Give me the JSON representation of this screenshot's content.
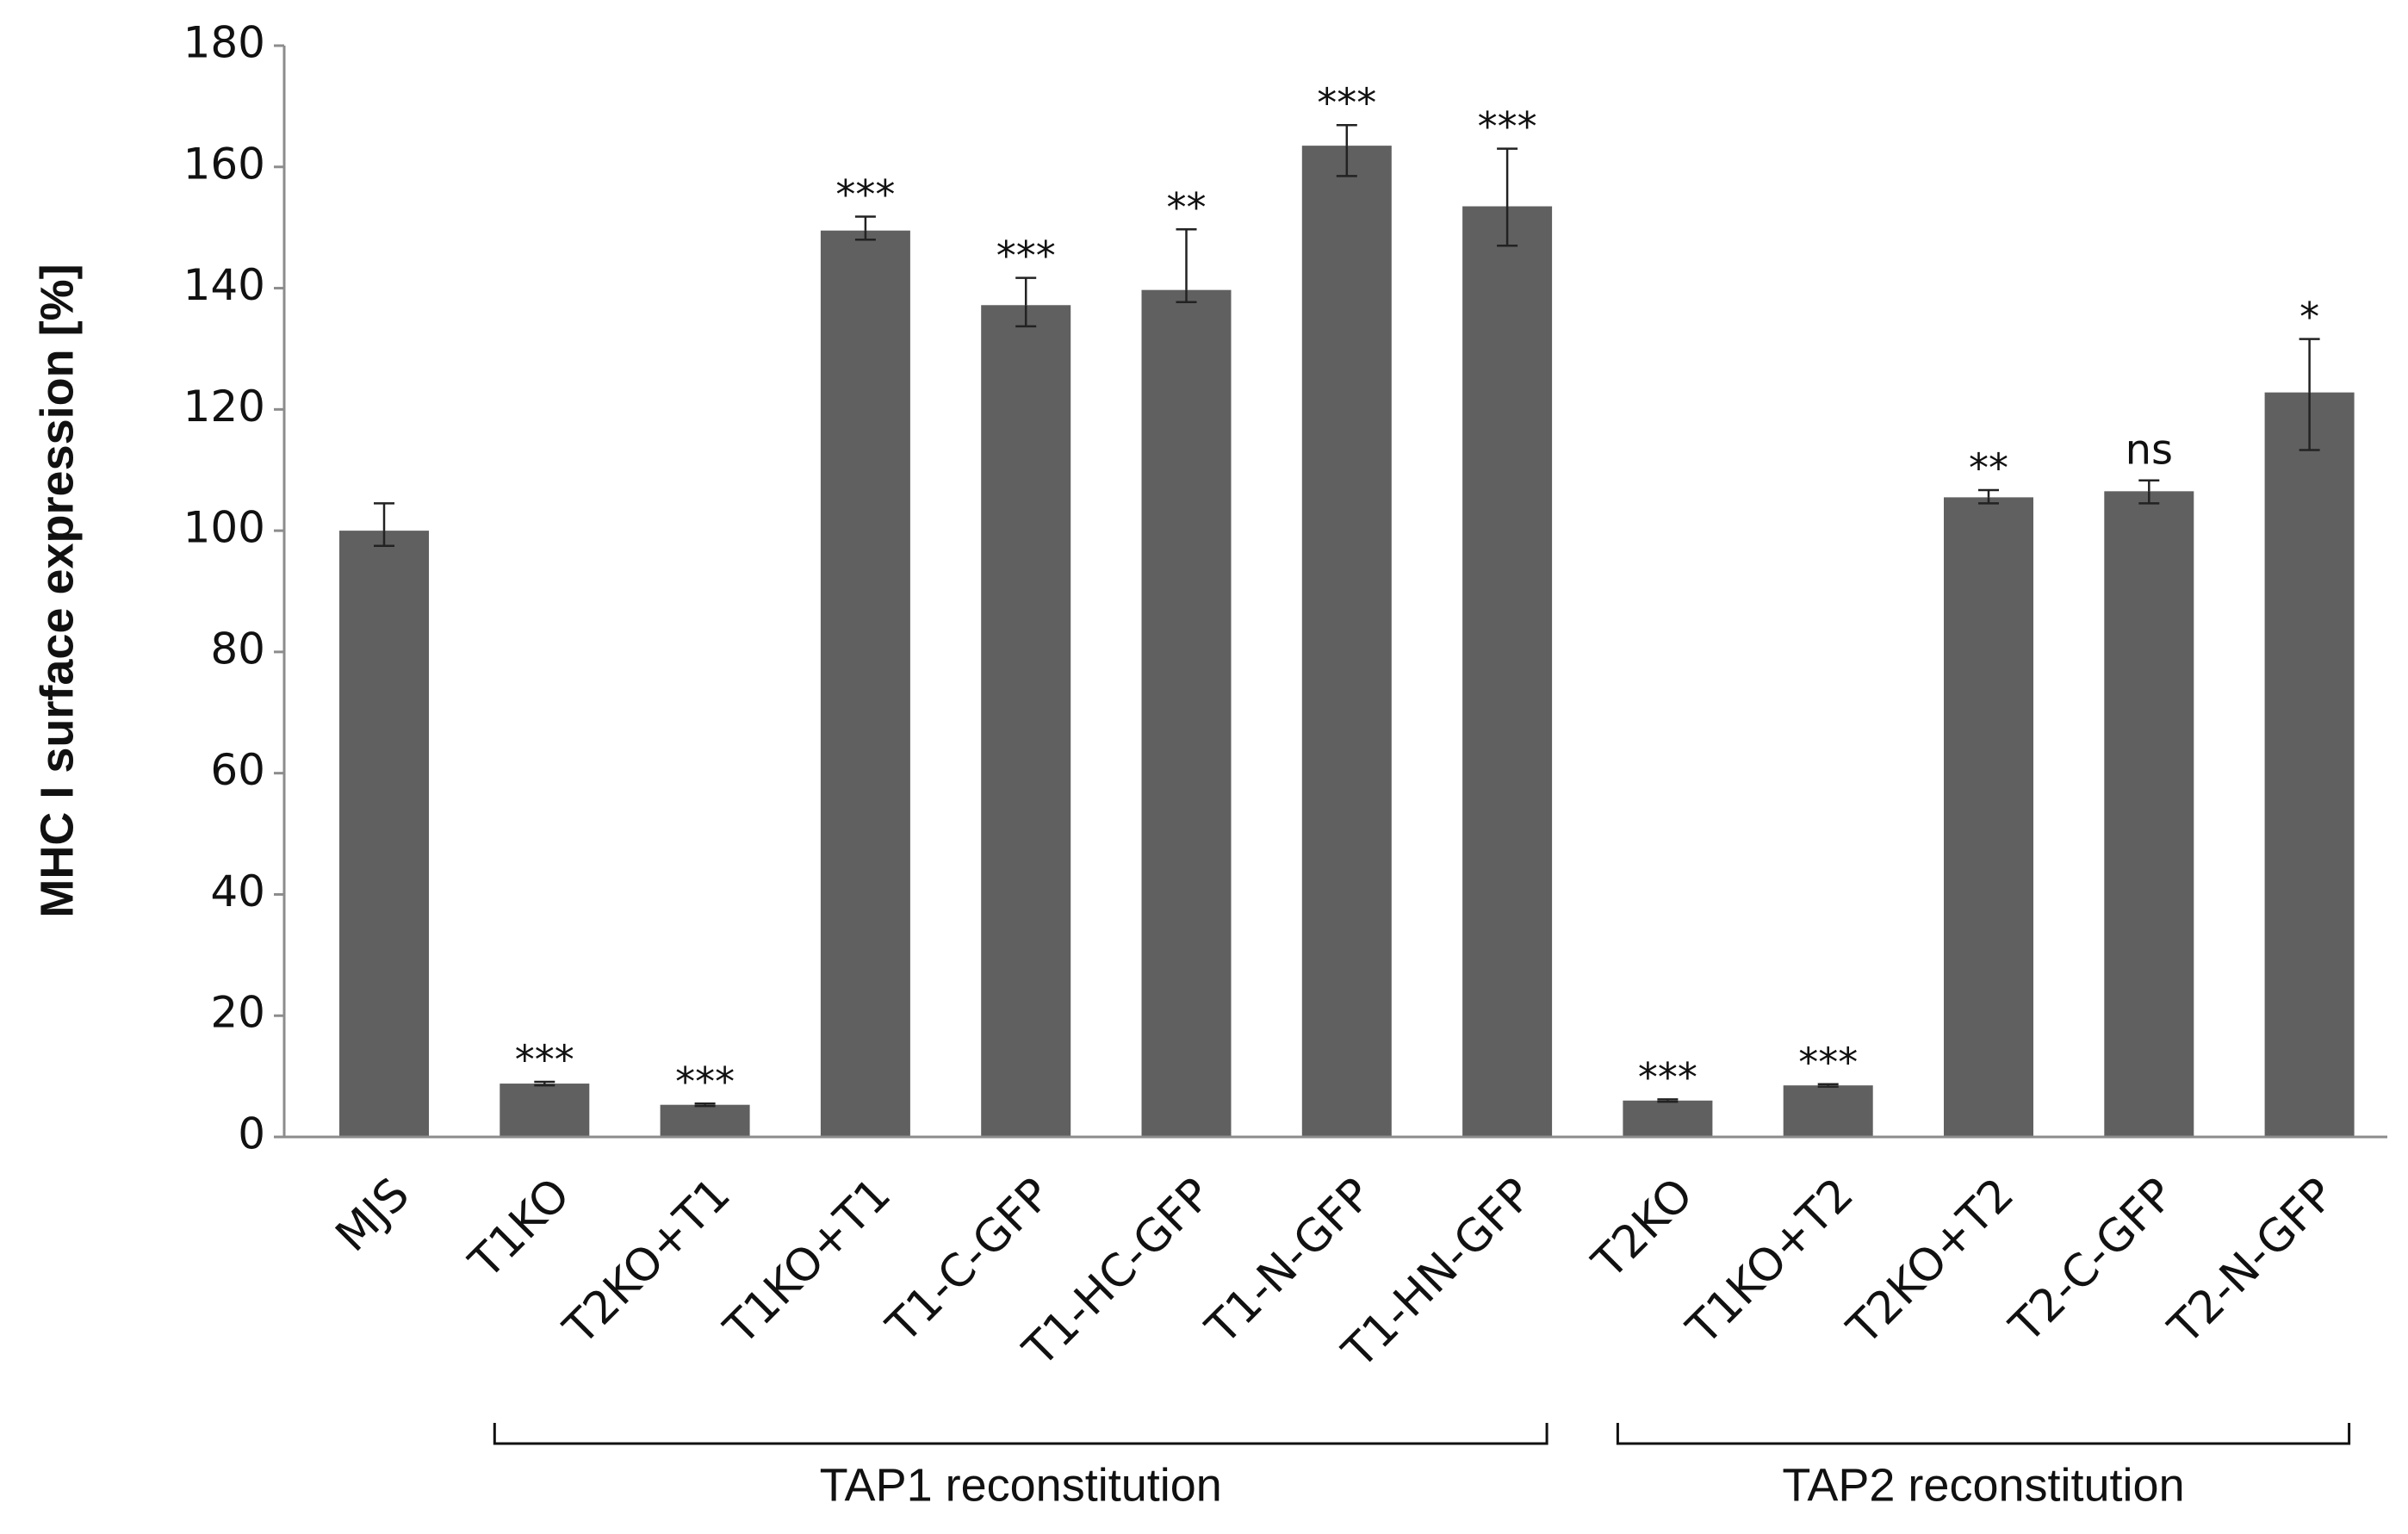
{
  "chart_data": {
    "type": "bar",
    "ylabel": "MHC I surface expression [%]",
    "categories": [
      "MJS",
      "T1KO",
      "T2KO+T1",
      "T1KO+T1",
      "T1-C-GFP",
      "T1-HC-GFP",
      "T1-N-GFP",
      "T1-HN-GFP",
      "T2KO",
      "T1KO+T2",
      "T2KO+T2",
      "T2-C-GFP",
      "T2-N-GFP"
    ],
    "values": [
      100,
      8.8,
      5.3,
      149.5,
      137.2,
      139.7,
      163.5,
      153.5,
      6.0,
      8.5,
      105.5,
      106.5,
      122.8
    ],
    "error_upper": [
      4.5,
      0.3,
      0.2,
      2.3,
      4.5,
      10,
      3.4,
      9.5,
      0.2,
      0.2,
      1.2,
      1.8,
      8.8
    ],
    "error_lower": [
      2.5,
      0.3,
      0.2,
      1.5,
      3.5,
      2,
      5,
      6.5,
      0.2,
      0.2,
      1,
      2,
      9.5
    ],
    "annotations": [
      null,
      "***",
      "***",
      "***",
      "***",
      "**",
      "***",
      "***",
      "***",
      "***",
      "**",
      "ns",
      "*"
    ],
    "groups": [
      {
        "label": "TAP1 reconstitution"
      },
      {
        "label": "TAP2 reconstitution"
      }
    ],
    "color": "#606060",
    "ylim": [
      0,
      180
    ],
    "yticks": [
      0,
      20,
      40,
      60,
      80,
      100,
      120,
      140,
      160,
      180
    ],
    "grid": false
  }
}
